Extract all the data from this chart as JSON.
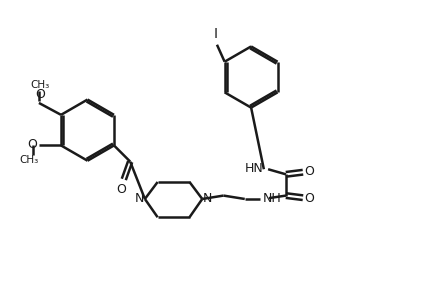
{
  "background_color": "#ffffff",
  "line_color": "#1a1a1a",
  "n_color": "#1a1a1a",
  "o_color": "#1a1a1a",
  "lw": 1.8,
  "figsize": [
    4.3,
    2.93
  ],
  "dpi": 100,
  "xlim": [
    0,
    10
  ],
  "ylim": [
    0,
    6.83
  ]
}
